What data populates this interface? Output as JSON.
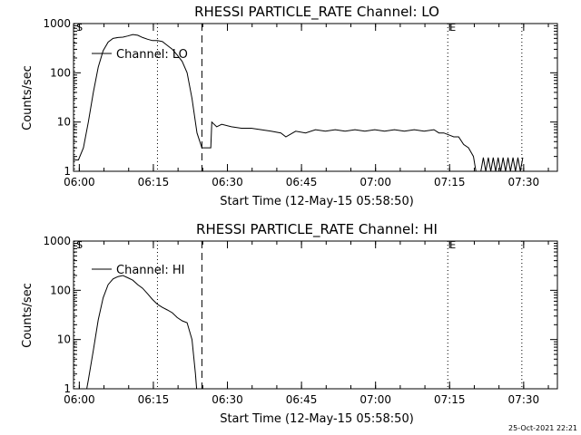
{
  "timestamp": "25-Oct-2021 22:21",
  "chart_data": [
    {
      "type": "line",
      "title": "RHESSI PARTICLE_RATE Channel: LO",
      "xlabel": "Start Time (12-May-15 05:58:50)",
      "ylabel": "Counts/sec",
      "yscale": "log",
      "ylim": [
        1,
        1000
      ],
      "xlim_min": [
        0,
        98
      ],
      "x_ticks": [
        {
          "t": 1.17,
          "label": "06:00"
        },
        {
          "t": 16.17,
          "label": "06:15"
        },
        {
          "t": 31.17,
          "label": "06:30"
        },
        {
          "t": 46.17,
          "label": "06:45"
        },
        {
          "t": 61.17,
          "label": "07:00"
        },
        {
          "t": 76.17,
          "label": "07:15"
        },
        {
          "t": 91.17,
          "label": "07:30"
        }
      ],
      "y_ticks": [
        {
          "v": 1,
          "label": "1"
        },
        {
          "v": 10,
          "label": "10"
        },
        {
          "v": 100,
          "label": "100"
        },
        {
          "v": 1000,
          "label": "1000"
        }
      ],
      "legend": "Channel: LO",
      "markers": [
        {
          "t": 0.2,
          "style": "dotted",
          "label": "S"
        },
        {
          "t": 17.0,
          "style": "dotted",
          "label": ""
        },
        {
          "t": 26.0,
          "style": "dashed",
          "label": ""
        },
        {
          "t": 75.8,
          "style": "dotted",
          "label": "E"
        },
        {
          "t": 90.8,
          "style": "dotted",
          "label": ""
        }
      ],
      "series": [
        {
          "name": "Channel: LO",
          "points": [
            [
              0,
              1.7
            ],
            [
              1,
              1.7
            ],
            [
              2,
              3
            ],
            [
              3,
              10
            ],
            [
              4,
              40
            ],
            [
              5,
              130
            ],
            [
              6,
              280
            ],
            [
              7,
              420
            ],
            [
              8,
              500
            ],
            [
              9,
              520
            ],
            [
              10,
              530
            ],
            [
              11,
              560
            ],
            [
              12,
              600
            ],
            [
              13,
              580
            ],
            [
              14,
              520
            ],
            [
              15,
              480
            ],
            [
              16,
              450
            ],
            [
              17,
              450
            ],
            [
              18,
              430
            ],
            [
              19,
              360
            ],
            [
              20,
              300
            ],
            [
              21,
              230
            ],
            [
              22,
              170
            ],
            [
              23,
              100
            ],
            [
              24,
              30
            ],
            [
              25,
              6
            ],
            [
              26,
              3
            ],
            [
              27,
              3
            ],
            [
              27.8,
              3
            ],
            [
              28,
              10
            ],
            [
              29,
              8
            ],
            [
              30,
              9
            ],
            [
              32,
              8
            ],
            [
              34,
              7.5
            ],
            [
              36,
              7.5
            ],
            [
              38,
              7
            ],
            [
              40,
              6.5
            ],
            [
              42,
              6
            ],
            [
              43,
              5
            ],
            [
              45,
              6.5
            ],
            [
              47,
              6
            ],
            [
              49,
              7
            ],
            [
              51,
              6.5
            ],
            [
              53,
              7
            ],
            [
              55,
              6.5
            ],
            [
              57,
              7
            ],
            [
              59,
              6.5
            ],
            [
              61,
              7
            ],
            [
              63,
              6.5
            ],
            [
              65,
              7
            ],
            [
              67,
              6.5
            ],
            [
              69,
              7
            ],
            [
              71,
              6.5
            ],
            [
              73,
              7
            ],
            [
              74,
              6
            ],
            [
              75,
              6
            ],
            [
              76,
              5.5
            ],
            [
              77,
              5
            ],
            [
              78,
              5
            ],
            [
              79,
              3.5
            ],
            [
              80,
              3
            ],
            [
              81,
              2
            ],
            [
              82,
              0.5
            ]
          ],
          "sparse": [
            [
              82.5,
              1
            ],
            [
              83,
              1.9
            ],
            [
              83.5,
              1
            ],
            [
              84,
              1.9
            ],
            [
              84.5,
              1
            ],
            [
              85,
              1.9
            ],
            [
              85.5,
              1
            ],
            [
              86,
              1.9
            ],
            [
              86.5,
              1
            ],
            [
              87,
              1.9
            ],
            [
              87.5,
              1
            ],
            [
              88,
              1.9
            ],
            [
              88.5,
              1
            ],
            [
              89,
              1.9
            ],
            [
              89.5,
              1
            ],
            [
              90,
              1.9
            ],
            [
              90.5,
              1
            ],
            [
              91,
              1.9
            ]
          ]
        }
      ]
    },
    {
      "type": "line",
      "title": "RHESSI PARTICLE_RATE Channel: HI",
      "xlabel": "Start Time (12-May-15 05:58:50)",
      "ylabel": "Counts/sec",
      "yscale": "log",
      "ylim": [
        1,
        1000
      ],
      "xlim_min": [
        0,
        98
      ],
      "x_ticks": [
        {
          "t": 1.17,
          "label": "06:00"
        },
        {
          "t": 16.17,
          "label": "06:15"
        },
        {
          "t": 31.17,
          "label": "06:30"
        },
        {
          "t": 46.17,
          "label": "06:45"
        },
        {
          "t": 61.17,
          "label": "07:00"
        },
        {
          "t": 76.17,
          "label": "07:15"
        },
        {
          "t": 91.17,
          "label": "07:30"
        }
      ],
      "y_ticks": [
        {
          "v": 1,
          "label": "1"
        },
        {
          "v": 10,
          "label": "10"
        },
        {
          "v": 100,
          "label": "100"
        },
        {
          "v": 1000,
          "label": "1000"
        }
      ],
      "legend": "Channel: HI",
      "markers": [
        {
          "t": 0.2,
          "style": "dotted",
          "label": "S"
        },
        {
          "t": 17.0,
          "style": "dotted",
          "label": ""
        },
        {
          "t": 26.0,
          "style": "dashed",
          "label": ""
        },
        {
          "t": 75.8,
          "style": "dotted",
          "label": "E"
        },
        {
          "t": 90.8,
          "style": "dotted",
          "label": ""
        }
      ],
      "series": [
        {
          "name": "Channel: HI",
          "points": [
            [
              2.5,
              0.8
            ],
            [
              3,
              1.5
            ],
            [
              4,
              6
            ],
            [
              5,
              25
            ],
            [
              6,
              70
            ],
            [
              7,
              130
            ],
            [
              8,
              170
            ],
            [
              9,
              190
            ],
            [
              10,
              200
            ],
            [
              11,
              180
            ],
            [
              12,
              160
            ],
            [
              13,
              130
            ],
            [
              14,
              110
            ],
            [
              15,
              85
            ],
            [
              16,
              65
            ],
            [
              17,
              52
            ],
            [
              18,
              45
            ],
            [
              19,
              40
            ],
            [
              20,
              35
            ],
            [
              21,
              28
            ],
            [
              22,
              24
            ],
            [
              23,
              22
            ],
            [
              24,
              10
            ],
            [
              24.7,
              2
            ],
            [
              25,
              0.8
            ]
          ],
          "sparse": []
        }
      ]
    }
  ]
}
